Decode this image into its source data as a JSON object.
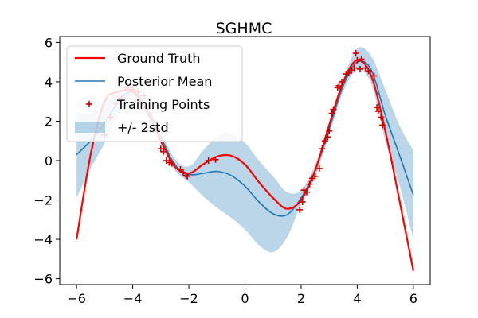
{
  "chart_data": {
    "type": "line",
    "title": "SGHMC",
    "xlabel": "",
    "ylabel": "",
    "xlim": [
      -6.6,
      6.6
    ],
    "ylim": [
      -6.3,
      6.3
    ],
    "xticks": [
      -6,
      -4,
      -2,
      0,
      2,
      4,
      6
    ],
    "yticks": [
      -6,
      -4,
      -2,
      0,
      2,
      4,
      6
    ],
    "xtick_labels": [
      "−6",
      "−4",
      "−2",
      "0",
      "2",
      "4",
      "6"
    ],
    "ytick_labels": [
      "−6",
      "−4",
      "−2",
      "0",
      "2",
      "4",
      "6"
    ],
    "grid": false,
    "legend_position": "top-left",
    "colors": {
      "ground_truth": "#ff0000",
      "posterior_mean": "#1f77b4",
      "band": "#1f77b4",
      "training_points": "#cc0000"
    },
    "legend": [
      {
        "key": "ground_truth",
        "label": "Ground Truth"
      },
      {
        "key": "posterior_mean",
        "label": "Posterior Mean"
      },
      {
        "key": "training_points",
        "label": "Training Points"
      },
      {
        "key": "band",
        "label": "+/- 2std"
      }
    ],
    "series": [
      {
        "name": "Ground Truth",
        "key": "ground_truth",
        "x": [
          -6,
          -5.5,
          -5,
          -4.5,
          -4,
          -3.5,
          -3,
          -2.5,
          -2,
          -1.5,
          -1,
          -0.5,
          0,
          0.5,
          1,
          1.5,
          2,
          2.5,
          3,
          3.5,
          4,
          4.5,
          5,
          5.5,
          6
        ],
        "y": [
          -4.0,
          0.3,
          3.0,
          3.5,
          3.5,
          2.5,
          1.0,
          -0.3,
          -0.65,
          -0.2,
          0.2,
          0.25,
          -0.2,
          -1.1,
          -1.9,
          -2.45,
          -2.0,
          -0.5,
          1.8,
          4.0,
          5.1,
          4.3,
          1.5,
          -2.0,
          -5.6
        ]
      },
      {
        "name": "Posterior Mean",
        "key": "posterior_mean",
        "x": [
          -6,
          -5.5,
          -5,
          -4.5,
          -4,
          -3.5,
          -3,
          -2.5,
          -2,
          -1.5,
          -1,
          -0.5,
          0,
          0.5,
          1,
          1.5,
          2,
          2.5,
          3,
          3.5,
          4,
          4.5,
          5,
          5.5,
          6
        ],
        "y": [
          0.3,
          1.0,
          1.9,
          3.0,
          3.5,
          2.7,
          1.2,
          -0.2,
          -0.7,
          -0.65,
          -0.55,
          -0.75,
          -1.3,
          -2.1,
          -2.7,
          -2.75,
          -1.9,
          -0.5,
          1.6,
          3.8,
          5.0,
          4.6,
          2.3,
          0.3,
          -1.75
        ]
      },
      {
        "name": "+/- 2std",
        "key": "band",
        "x": [
          -6,
          -5.5,
          -5,
          -4.5,
          -4,
          -3.5,
          -3,
          -2.5,
          -2,
          -1.5,
          -1,
          -0.5,
          0,
          0.5,
          1,
          1.5,
          2,
          2.5,
          3,
          3.5,
          4,
          4.5,
          5,
          5.5,
          6
        ],
        "lower": [
          -1.9,
          -0.4,
          0.9,
          2.4,
          3.2,
          2.4,
          0.9,
          -0.5,
          -1.1,
          -1.8,
          -2.4,
          -2.9,
          -3.5,
          -4.3,
          -4.65,
          -3.9,
          -2.2,
          -0.8,
          1.3,
          3.5,
          4.6,
          3.9,
          1.0,
          -1.2,
          -4.0
        ],
        "upper": [
          2.5,
          2.4,
          2.9,
          3.6,
          3.8,
          3.0,
          1.5,
          0.1,
          -0.3,
          0.5,
          1.2,
          1.4,
          0.9,
          0.0,
          -0.8,
          -1.6,
          -1.5,
          -0.2,
          1.9,
          4.1,
          5.7,
          5.3,
          3.6,
          1.8,
          0.5
        ]
      }
    ],
    "training_points": {
      "name": "Training Points",
      "key": "training_points",
      "x": [
        -5.0,
        -4.8,
        -4.6,
        -4.4,
        -4.2,
        -4.0,
        -3.8,
        -3.6,
        -3.0,
        -2.9,
        -2.8,
        -2.7,
        -2.6,
        -2.3,
        -2.2,
        -2.1,
        -2.05,
        -1.3,
        -1.05,
        1.95,
        2.05,
        2.1,
        2.2,
        2.3,
        2.4,
        2.5,
        2.65,
        2.75,
        2.85,
        2.95,
        3.0,
        3.1,
        3.15,
        3.3,
        3.35,
        3.45,
        3.6,
        3.7,
        3.8,
        3.9,
        3.95,
        4.0,
        4.1,
        4.15,
        4.3,
        4.4,
        4.6,
        4.7,
        4.75,
        4.85,
        4.9
      ],
      "y": [
        1.3,
        2.2,
        2.9,
        3.2,
        3.7,
        3.6,
        3.5,
        3.3,
        0.6,
        0.45,
        0.0,
        -0.1,
        -0.15,
        -0.45,
        -0.6,
        -0.75,
        -0.8,
        0.0,
        0.05,
        -2.5,
        -2.1,
        -1.5,
        -1.6,
        -1.2,
        -0.9,
        -0.8,
        -0.4,
        0.6,
        1.0,
        1.2,
        1.5,
        2.4,
        2.6,
        3.7,
        3.8,
        4.0,
        4.4,
        4.45,
        4.6,
        4.7,
        5.45,
        5.1,
        4.65,
        5.15,
        4.7,
        4.55,
        4.3,
        2.7,
        2.5,
        2.2,
        1.8
      ]
    }
  }
}
